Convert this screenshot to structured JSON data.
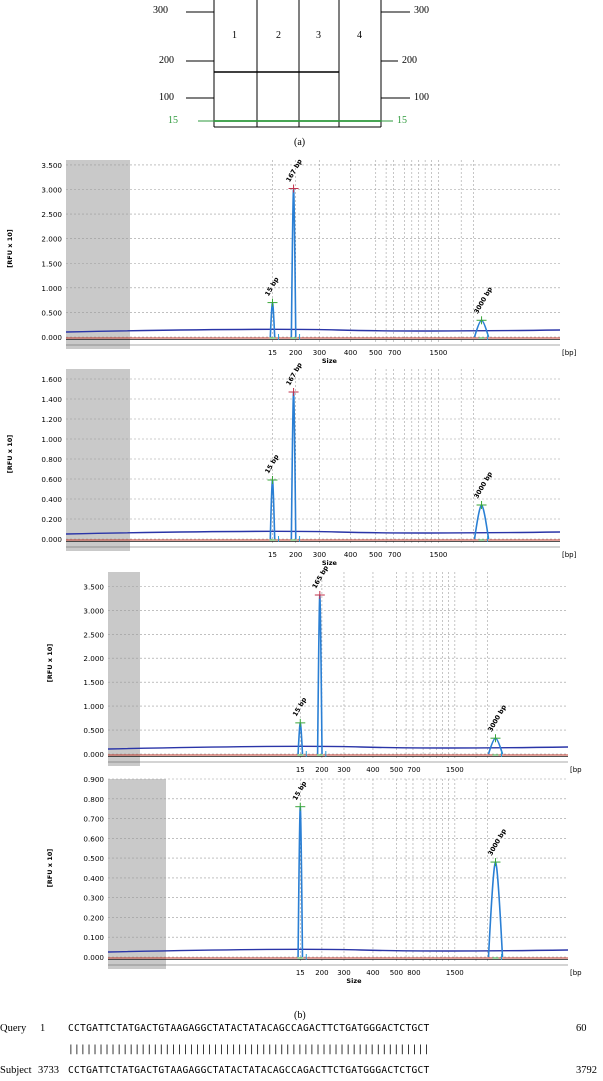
{
  "panel_a": {
    "label": "(a)",
    "lanes": [
      "1",
      "2",
      "3",
      "4"
    ],
    "ladder_left": [
      "300",
      "200",
      "100",
      "15"
    ],
    "ladder_right": [
      "300",
      "200",
      "100",
      "15"
    ],
    "marker_color": "#2e9a3c"
  },
  "panel_b": {
    "label": "(b)"
  },
  "chart_data": [
    {
      "type": "line",
      "ylabel": "[RFU x 10]",
      "xlabel": "Size",
      "x_unit": "[bp]",
      "yticks": [
        "3.500",
        "3.000",
        "2.500",
        "2.000",
        "1.500",
        "1.000",
        "0.500",
        "0.000"
      ],
      "ylim": [
        0,
        3.6
      ],
      "xticks": [
        "15",
        "200",
        "300",
        "400",
        "500",
        "700",
        "1500"
      ],
      "peaks": [
        {
          "label": "15 bp",
          "size": 15,
          "height": 0.7
        },
        {
          "label": "167 bp",
          "size": 167,
          "height": 3.02
        },
        {
          "label": "3000 bp",
          "size": 3000,
          "height": 0.34
        }
      ]
    },
    {
      "type": "line",
      "ylabel": "[RFU x 10]",
      "xlabel": "Size",
      "x_unit": "[bp]",
      "yticks": [
        "1.600",
        "1.400",
        "1.200",
        "1.000",
        "0.800",
        "0.600",
        "0.400",
        "0.200",
        "0.000"
      ],
      "ylim": [
        0,
        1.7
      ],
      "xticks": [
        "15",
        "200",
        "300",
        "400",
        "500",
        "700",
        "1500"
      ],
      "peaks": [
        {
          "label": "15 bp",
          "size": 15,
          "height": 0.59
        },
        {
          "label": "167 bp",
          "size": 167,
          "height": 1.47
        },
        {
          "label": "3000 bp",
          "size": 3000,
          "height": 0.34
        }
      ]
    },
    {
      "type": "line",
      "ylabel": "[RFU x 10]",
      "xlabel": "",
      "x_unit": "[bp",
      "yticks": [
        "3.500",
        "3.000",
        "2.500",
        "2.000",
        "1.500",
        "1.000",
        "0.500",
        "0.000"
      ],
      "ylim": [
        0,
        3.8
      ],
      "xticks": [
        "15",
        "200",
        "300",
        "400",
        "500",
        "700",
        "1500"
      ],
      "peaks": [
        {
          "label": "15 bp",
          "size": 15,
          "height": 0.65
        },
        {
          "label": "165 bp",
          "size": 165,
          "height": 3.32
        },
        {
          "label": "3000 bp",
          "size": 3000,
          "height": 0.33
        }
      ]
    },
    {
      "type": "line",
      "ylabel": "[RFU x 10]",
      "xlabel": "Size",
      "x_unit": "[bp",
      "yticks": [
        "0.900",
        "0.800",
        "0.700",
        "0.600",
        "0.500",
        "0.400",
        "0.300",
        "0.200",
        "0.100",
        "0.000"
      ],
      "ylim": [
        0,
        0.9
      ],
      "xticks": [
        "15",
        "200",
        "300",
        "400",
        "500",
        "800",
        "1500"
      ],
      "peaks": [
        {
          "label": "15 bp",
          "size": 15,
          "height": 0.76
        },
        {
          "label": "3000 bp",
          "size": 3000,
          "height": 0.48
        }
      ]
    }
  ],
  "blast": {
    "query_name": "Query",
    "query_start": "1",
    "query_seq": "CCTGATTCTATGACTGTAAGAGGCTATACTATACAGCCAGACTTCTGATGGGACTCTGCT",
    "query_end": "60",
    "match_line": "||||||||||||||||||||||||||||||||||||||||||||||||||||||||||||",
    "subject_name": "Subject",
    "subject_start": "3733",
    "subject_seq": "CCTGATTCTATGACTGTAAGAGGCTATACTATACAGCCAGACTTCTGATGGGACTCTGCT",
    "subject_end": "3792"
  }
}
